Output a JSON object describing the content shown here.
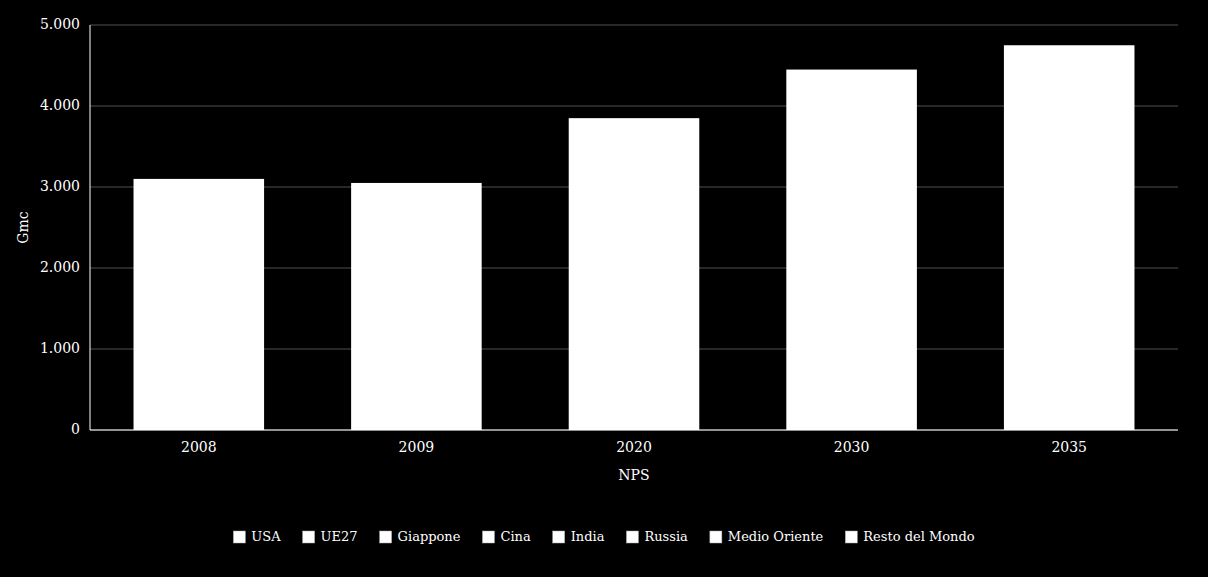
{
  "chart_data": {
    "type": "bar",
    "categories": [
      "2008",
      "2009",
      "2020",
      "2030",
      "2035"
    ],
    "values": [
      3100,
      3050,
      3850,
      4450,
      4750
    ],
    "color": "#ffffff",
    "ylabel": "Gmc",
    "xlabel": "NPS",
    "ylim": [
      0,
      5000
    ],
    "yticks": [
      0,
      {
        "value": 1000,
        "label": "1.000"
      },
      {
        "value": 2000,
        "label": "2.000"
      },
      {
        "value": 3000,
        "label": "3.000"
      },
      {
        "value": 4000,
        "label": "4.000"
      },
      {
        "value": 5000,
        "label": "5.000"
      }
    ],
    "grid": true,
    "legend": "bottom",
    "legend_items": [
      "USA",
      "UE27",
      "Giappone",
      "Cina",
      "India",
      "Russia",
      "Medio Oriente",
      "Resto del Mondo"
    ]
  }
}
